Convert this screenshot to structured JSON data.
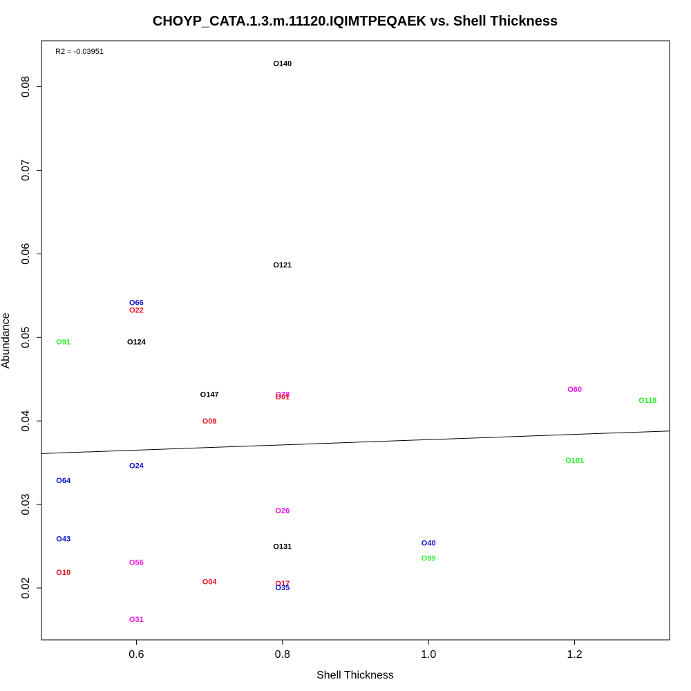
{
  "chart_data": {
    "type": "scatter",
    "title": "CHOYP_CATA.1.3.m.11120.IQIMTPEQAEK vs. Shell Thickness",
    "xlabel": "Shell Thickness",
    "ylabel": "Abundance",
    "annotation": "R2 = -0.03951",
    "xlim": [
      0.47,
      1.33
    ],
    "ylim": [
      0.0138,
      0.0855
    ],
    "xticks": [
      0.6,
      0.8,
      1.0,
      1.2
    ],
    "xtick_labels": [
      "0.6",
      "0.8",
      "1.0",
      "1.2"
    ],
    "yticks": [
      0.02,
      0.03,
      0.04,
      0.05,
      0.06,
      0.07,
      0.08
    ],
    "ytick_labels": [
      "0.02",
      "0.03",
      "0.04",
      "0.05",
      "0.06",
      "0.07",
      "0.08"
    ],
    "grid": false,
    "regression_line": {
      "y_at_xmin": 0.0361,
      "y_at_xmax": 0.0388
    },
    "colors": {
      "black": "#000000",
      "red": "#e8101e",
      "blue": "#0a12c8",
      "magenta": "#e815e6",
      "green": "#2ff02f"
    },
    "points": [
      {
        "label": "O140",
        "x": 0.8,
        "y": 0.0828,
        "color": "black"
      },
      {
        "label": "O121",
        "x": 0.8,
        "y": 0.0587,
        "color": "black"
      },
      {
        "label": "O66",
        "x": 0.6,
        "y": 0.0542,
        "color": "blue"
      },
      {
        "label": "O22",
        "x": 0.6,
        "y": 0.0533,
        "color": "red"
      },
      {
        "label": "O91",
        "x": 0.5,
        "y": 0.0495,
        "color": "green"
      },
      {
        "label": "O124",
        "x": 0.6,
        "y": 0.0495,
        "color": "black"
      },
      {
        "label": "O147",
        "x": 0.7,
        "y": 0.0432,
        "color": "black"
      },
      {
        "label": "O78",
        "x": 0.8,
        "y": 0.0432,
        "color": "magenta"
      },
      {
        "label": "O01",
        "x": 0.8,
        "y": 0.0429,
        "color": "red"
      },
      {
        "label": "O60",
        "x": 1.2,
        "y": 0.0438,
        "color": "magenta"
      },
      {
        "label": "O118",
        "x": 1.3,
        "y": 0.0425,
        "color": "green"
      },
      {
        "label": "O08",
        "x": 0.7,
        "y": 0.04,
        "color": "red"
      },
      {
        "label": "O101",
        "x": 1.2,
        "y": 0.0353,
        "color": "green"
      },
      {
        "label": "O24",
        "x": 0.6,
        "y": 0.0347,
        "color": "blue"
      },
      {
        "label": "O64",
        "x": 0.5,
        "y": 0.0329,
        "color": "blue"
      },
      {
        "label": "O26",
        "x": 0.8,
        "y": 0.0293,
        "color": "magenta"
      },
      {
        "label": "O43",
        "x": 0.5,
        "y": 0.0259,
        "color": "blue"
      },
      {
        "label": "O40",
        "x": 1.0,
        "y": 0.0254,
        "color": "blue"
      },
      {
        "label": "O131",
        "x": 0.8,
        "y": 0.025,
        "color": "black"
      },
      {
        "label": "O99",
        "x": 1.0,
        "y": 0.0236,
        "color": "green"
      },
      {
        "label": "O56",
        "x": 0.6,
        "y": 0.0231,
        "color": "magenta"
      },
      {
        "label": "O10",
        "x": 0.5,
        "y": 0.0219,
        "color": "red"
      },
      {
        "label": "O04",
        "x": 0.7,
        "y": 0.0208,
        "color": "red"
      },
      {
        "label": "O17",
        "x": 0.8,
        "y": 0.0206,
        "color": "red"
      },
      {
        "label": "O35",
        "x": 0.8,
        "y": 0.0201,
        "color": "blue"
      },
      {
        "label": "O31",
        "x": 0.6,
        "y": 0.0163,
        "color": "magenta"
      }
    ]
  }
}
